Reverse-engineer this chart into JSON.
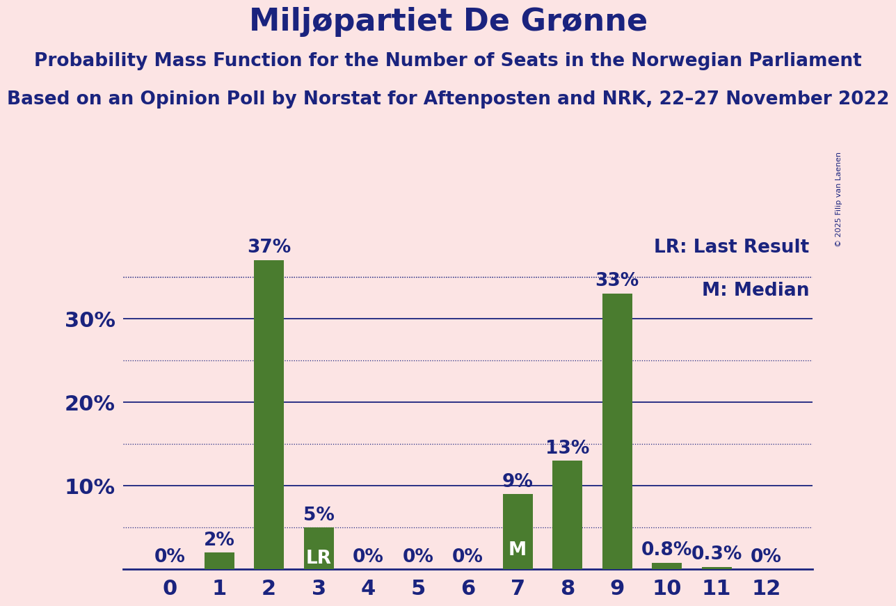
{
  "title": "Miljøpartiet De Grønne",
  "subtitle1": "Probability Mass Function for the Number of Seats in the Norwegian Parliament",
  "subtitle2": "Based on an Opinion Poll by Norstat for Aftenposten and NRK, 22–27 November 2022",
  "copyright": "© 2025 Filip van Laenen",
  "categories": [
    0,
    1,
    2,
    3,
    4,
    5,
    6,
    7,
    8,
    9,
    10,
    11,
    12
  ],
  "values": [
    0,
    2,
    37,
    5,
    0,
    0,
    0,
    9,
    13,
    33,
    0.8,
    0.3,
    0
  ],
  "bar_color": "#4a7c2f",
  "background_color": "#fce4e4",
  "text_color": "#1a237e",
  "bar_labels": [
    "0%",
    "2%",
    "37%",
    "5%",
    "0%",
    "0%",
    "0%",
    "9%",
    "13%",
    "33%",
    "0.8%",
    "0.3%",
    "0%"
  ],
  "bar_special": {
    "3": "LR",
    "7": "M"
  },
  "legend_lr": "LR: Last Result",
  "legend_m": "M: Median",
  "ylim": [
    0,
    40
  ],
  "solid_grid": [
    10,
    20,
    30
  ],
  "dotted_grid": [
    5,
    15,
    25,
    35
  ],
  "title_fontsize": 32,
  "subtitle_fontsize": 19,
  "axis_label_fontsize": 22,
  "bar_label_fontsize": 19,
  "legend_fontsize": 19
}
